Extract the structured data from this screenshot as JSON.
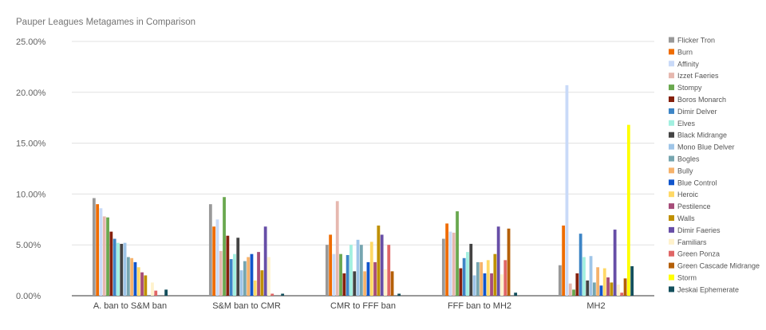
{
  "chart_data": {
    "type": "bar",
    "title": "Pauper Leagues Metagames in Comparison",
    "xlabel": "",
    "ylabel": "",
    "ylim": [
      0,
      25
    ],
    "yticks": [
      "0.00%",
      "5.00%",
      "10.00%",
      "15.00%",
      "20.00%",
      "25.00%"
    ],
    "ytick_values": [
      0,
      5,
      10,
      15,
      20,
      25
    ],
    "grid": true,
    "legend_position": "right",
    "categories": [
      "A. ban to S&M ban",
      "S&M ban to CMR",
      "CMR to FFF ban",
      "FFF ban to MH2",
      "MH2"
    ],
    "series": [
      {
        "name": "Flicker Tron",
        "color": "#999999",
        "values": [
          9.6,
          9.0,
          5.0,
          5.6,
          3.0
        ]
      },
      {
        "name": "Burn",
        "color": "#ef6c00",
        "values": [
          9.0,
          6.8,
          6.0,
          7.1,
          6.9
        ]
      },
      {
        "name": "Affinity",
        "color": "#c9daf8",
        "values": [
          8.6,
          7.5,
          4.1,
          6.3,
          20.7
        ]
      },
      {
        "name": "Izzet Faeries",
        "color": "#e6b8af",
        "values": [
          7.8,
          4.4,
          9.3,
          6.2,
          1.2
        ]
      },
      {
        "name": "Stompy",
        "color": "#6aa84f",
        "values": [
          7.7,
          9.7,
          4.1,
          8.3,
          0.6
        ]
      },
      {
        "name": "Boros Monarch",
        "color": "#85200c",
        "values": [
          6.3,
          5.9,
          2.2,
          2.7,
          2.2
        ]
      },
      {
        "name": "Dimir Delver",
        "color": "#3d85c6",
        "values": [
          5.6,
          3.6,
          4.0,
          3.7,
          6.1
        ]
      },
      {
        "name": "Elves",
        "color": "#a2f0e0",
        "values": [
          5.2,
          4.1,
          5.0,
          4.3,
          3.8
        ]
      },
      {
        "name": "Black Midrange",
        "color": "#434343",
        "values": [
          5.1,
          5.7,
          2.4,
          5.1,
          1.5
        ]
      },
      {
        "name": "Mono Blue Delver",
        "color": "#9fc5e8",
        "values": [
          5.2,
          2.5,
          5.5,
          2.0,
          3.9
        ]
      },
      {
        "name": "Bogles",
        "color": "#76a5af",
        "values": [
          3.8,
          3.4,
          5.0,
          3.3,
          1.3
        ]
      },
      {
        "name": "Bully",
        "color": "#f6b26b",
        "values": [
          3.7,
          3.8,
          2.4,
          3.3,
          2.8
        ]
      },
      {
        "name": "Blue Control",
        "color": "#1155cc",
        "values": [
          3.3,
          4.1,
          3.3,
          2.2,
          1.0
        ]
      },
      {
        "name": "Heroic",
        "color": "#ffd966",
        "values": [
          2.8,
          1.5,
          5.3,
          3.5,
          2.7
        ]
      },
      {
        "name": "Pestilence",
        "color": "#a64d79",
        "values": [
          2.3,
          4.3,
          3.3,
          2.2,
          1.8
        ]
      },
      {
        "name": "Walls",
        "color": "#bf9000",
        "values": [
          2.0,
          2.5,
          6.9,
          4.1,
          1.3
        ]
      },
      {
        "name": "Dimir Faeries",
        "color": "#674ea7",
        "values": [
          0.0,
          6.8,
          6.0,
          6.8,
          6.5
        ]
      },
      {
        "name": "Familiars",
        "color": "#fff2cc",
        "values": [
          1.3,
          3.8,
          2.6,
          2.1,
          1.1
        ]
      },
      {
        "name": "Green Ponza",
        "color": "#e06666",
        "values": [
          0.5,
          0.2,
          5.0,
          3.5,
          0.3
        ]
      },
      {
        "name": "Green Cascade Midrange",
        "color": "#b45f06",
        "values": [
          0.0,
          0.0,
          2.4,
          6.6,
          1.7
        ]
      },
      {
        "name": "Storm",
        "color": "#ffff00",
        "values": [
          0.0,
          0.0,
          0.0,
          0.0,
          16.8
        ]
      },
      {
        "name": "Jeskai Ephemerate",
        "color": "#134f5c",
        "values": [
          0.6,
          0.2,
          0.2,
          0.3,
          2.9
        ]
      }
    ]
  }
}
